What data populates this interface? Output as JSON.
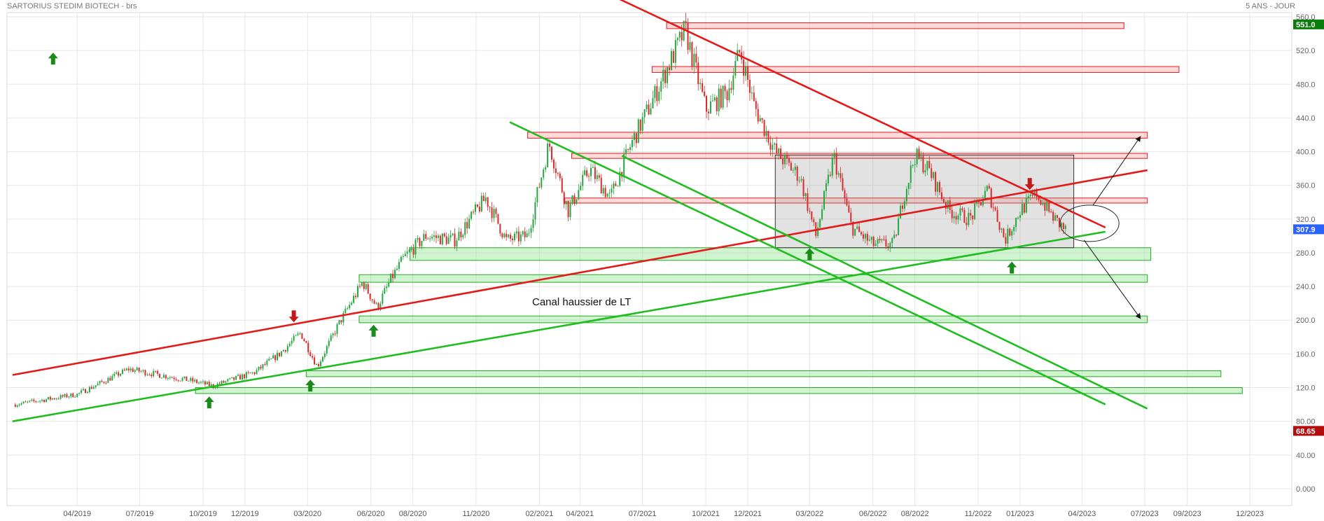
{
  "header": {
    "title": "SARTORIUS STEDIM BIOTECH - brs",
    "period": "5 ANS - JOUR"
  },
  "annotation": "Canal haussier de LT",
  "colors": {
    "resistance": "#e31a1a",
    "support": "#1fbd1f",
    "up_candle": "#26a641",
    "down_candle": "#d92b2b",
    "last_price_tag": "#2962ff",
    "high_tag": "#0a7d0a",
    "low_tag": "#b30d0d"
  },
  "chart_data": {
    "type": "candlestick",
    "title": "SARTORIUS STEDIM BIOTECH - brs",
    "period": "5 ANS - JOUR",
    "x_tick_labels": [
      "04/2019",
      "07/2019",
      "10/2019",
      "12/2019",
      "03/2020",
      "06/2020",
      "08/2020",
      "11/2020",
      "02/2021",
      "04/2021",
      "07/2021",
      "10/2021",
      "12/2021",
      "03/2022",
      "06/2022",
      "08/2022",
      "11/2022",
      "01/2023",
      "04/2023",
      "07/2023",
      "09/2023",
      "12/2023"
    ],
    "y_tick_labels": [
      "560.0",
      "520.0",
      "480.0",
      "440.0",
      "400.0",
      "360.0",
      "320.0",
      "280.0",
      "240.0",
      "200.0",
      "160.0",
      "120.0",
      "80.00",
      "40.00",
      "0.000"
    ],
    "ylim": [
      -20,
      565
    ],
    "grid": true,
    "price_tags": {
      "high": "551.0",
      "last": "307.9",
      "low": "68.65"
    },
    "price_path_approx": [
      [
        "2019-01-01",
        100
      ],
      [
        "2019-04-01",
        112
      ],
      [
        "2019-06-15",
        142
      ],
      [
        "2019-09-15",
        128
      ],
      [
        "2019-10-15",
        122
      ],
      [
        "2019-12-15",
        138
      ],
      [
        "2020-01-20",
        160
      ],
      [
        "2020-02-20",
        185
      ],
      [
        "2020-03-15",
        145
      ],
      [
        "2020-04-15",
        195
      ],
      [
        "2020-05-20",
        245
      ],
      [
        "2020-06-10",
        215
      ],
      [
        "2020-07-01",
        250
      ],
      [
        "2020-07-20",
        275
      ],
      [
        "2020-08-20",
        300
      ],
      [
        "2020-10-01",
        295
      ],
      [
        "2020-11-15",
        345
      ],
      [
        "2020-12-15",
        295
      ],
      [
        "2021-01-15",
        300
      ],
      [
        "2021-02-15",
        410
      ],
      [
        "2021-03-15",
        330
      ],
      [
        "2021-04-15",
        380
      ],
      [
        "2021-05-15",
        345
      ],
      [
        "2021-06-15",
        410
      ],
      [
        "2021-07-15",
        460
      ],
      [
        "2021-09-01",
        545
      ],
      [
        "2021-10-01",
        450
      ],
      [
        "2021-11-01",
        470
      ],
      [
        "2021-11-20",
        520
      ],
      [
        "2021-12-10",
        455
      ],
      [
        "2022-01-10",
        400
      ],
      [
        "2022-02-15",
        370
      ],
      [
        "2022-03-10",
        300
      ],
      [
        "2022-04-05",
        395
      ],
      [
        "2022-05-01",
        310
      ],
      [
        "2022-06-01",
        290
      ],
      [
        "2022-07-01",
        290
      ],
      [
        "2022-07-15",
        345
      ],
      [
        "2022-08-01",
        395
      ],
      [
        "2022-08-20",
        380
      ],
      [
        "2022-09-20",
        330
      ],
      [
        "2022-10-20",
        320
      ],
      [
        "2022-11-15",
        355
      ],
      [
        "2022-12-10",
        295
      ],
      [
        "2023-01-01",
        330
      ],
      [
        "2023-01-25",
        350
      ],
      [
        "2023-02-20",
        320
      ],
      [
        "2023-03-10",
        305
      ]
    ],
    "trendlines": [
      {
        "kind": "resistance",
        "from": [
          "2018-12-28",
          135
        ],
        "to": [
          "2023-07-05",
          378
        ]
      },
      {
        "kind": "resistance",
        "from": [
          "2021-05-05",
          590
        ],
        "to": [
          "2023-05-05",
          310
        ]
      },
      {
        "kind": "support",
        "from": [
          "2018-12-28",
          80
        ],
        "to": [
          "2023-05-05",
          305
        ]
      },
      {
        "kind": "support",
        "from": [
          "2020-12-20",
          435
        ],
        "to": [
          "2023-05-05",
          100
        ]
      },
      {
        "kind": "support",
        "from": [
          "2021-06-01",
          395
        ],
        "to": [
          "2023-07-05",
          95
        ]
      }
    ],
    "zones": [
      {
        "kind": "resistance",
        "from": "2021-08-05",
        "to": "2023-06-01",
        "y_low": 546,
        "y_high": 553
      },
      {
        "kind": "resistance",
        "from": "2021-07-15",
        "to": "2023-08-20",
        "y_low": 494,
        "y_high": 501
      },
      {
        "kind": "resistance",
        "from": "2021-01-15",
        "to": "2023-07-05",
        "y_low": 416,
        "y_high": 423
      },
      {
        "kind": "resistance",
        "from": "2021-03-20",
        "to": "2023-07-05",
        "y_low": 392,
        "y_high": 398
      },
      {
        "kind": "resistance",
        "from": "2021-03-10",
        "to": "2023-07-05",
        "y_low": 339,
        "y_high": 345
      },
      {
        "kind": "support",
        "from": "2020-07-28",
        "to": "2023-07-10",
        "y_low": 271,
        "y_high": 286
      },
      {
        "kind": "support",
        "from": "2020-05-15",
        "to": "2023-07-05",
        "y_low": 245,
        "y_high": 254
      },
      {
        "kind": "support",
        "from": "2020-05-15",
        "to": "2023-07-05",
        "y_low": 197,
        "y_high": 205
      },
      {
        "kind": "support",
        "from": "2020-02-28",
        "to": "2023-10-20",
        "y_low": 133,
        "y_high": 140
      },
      {
        "kind": "support",
        "from": "2019-09-20",
        "to": "2023-11-20",
        "y_low": 113,
        "y_high": 120
      }
    ],
    "range_box": {
      "from": "2022-01-10",
      "to": "2023-03-20",
      "y_low": 286,
      "y_high": 396
    },
    "arrows": [
      {
        "dir": "up",
        "date": "2019-02-25",
        "y": 510
      },
      {
        "dir": "up",
        "date": "2019-10-10",
        "y": 102
      },
      {
        "dir": "up",
        "date": "2020-03-05",
        "y": 122
      },
      {
        "dir": "up",
        "date": "2020-06-05",
        "y": 187
      },
      {
        "dir": "up",
        "date": "2022-03-01",
        "y": 278
      },
      {
        "dir": "up",
        "date": "2022-12-20",
        "y": 262
      },
      {
        "dir": "down",
        "date": "2020-02-10",
        "y": 205
      },
      {
        "dir": "down",
        "date": "2023-01-15",
        "y": 362
      }
    ]
  }
}
